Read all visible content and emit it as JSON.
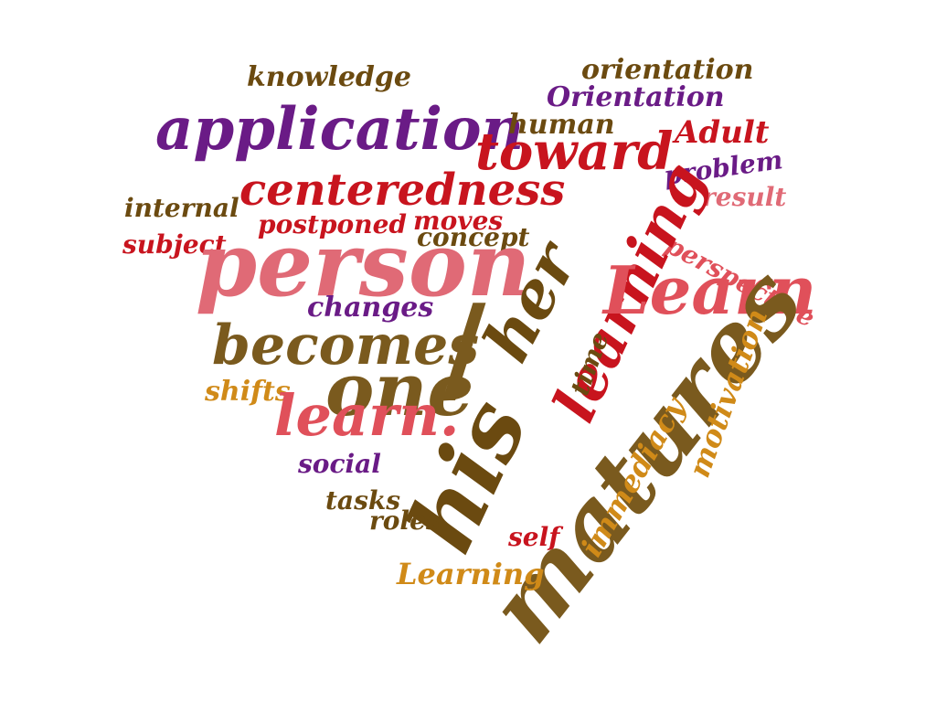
{
  "words": {
    "knowledge": "knowledge",
    "orientation": "orientation",
    "Orientation": "Orientation",
    "application": "application",
    "human": "human",
    "toward": "toward",
    "Adult": "Adult",
    "problem": "problem",
    "centeredness": "centeredness",
    "internal": "internal",
    "result": "result",
    "postponed": "postponed",
    "moves": "moves",
    "concept": "concept",
    "subject": "subject",
    "perspective": "perspective",
    "person": "person",
    "her": "her",
    "learning": "learning",
    "Learn": "Learn",
    "changes": "changes",
    "becomes": "becomes",
    "slash": "/",
    "one": "one",
    "time": "time",
    "shifts": "shifts",
    "learn": "learn.",
    "matures": "matures",
    "motivation": "motivation",
    "immediacy": "immediacy",
    "his": "his",
    "social": "social",
    "tasks": "tasks",
    "roles": "roles",
    "self": "self",
    "Learning": "Learning"
  },
  "colors": {
    "brown": "#7a5a1e",
    "purple": "#6a1b86",
    "red": "#c8141e",
    "rose": "#e0505a",
    "pink": "#e06a76",
    "gold": "#d08a18",
    "dark": "#6b4a10"
  }
}
